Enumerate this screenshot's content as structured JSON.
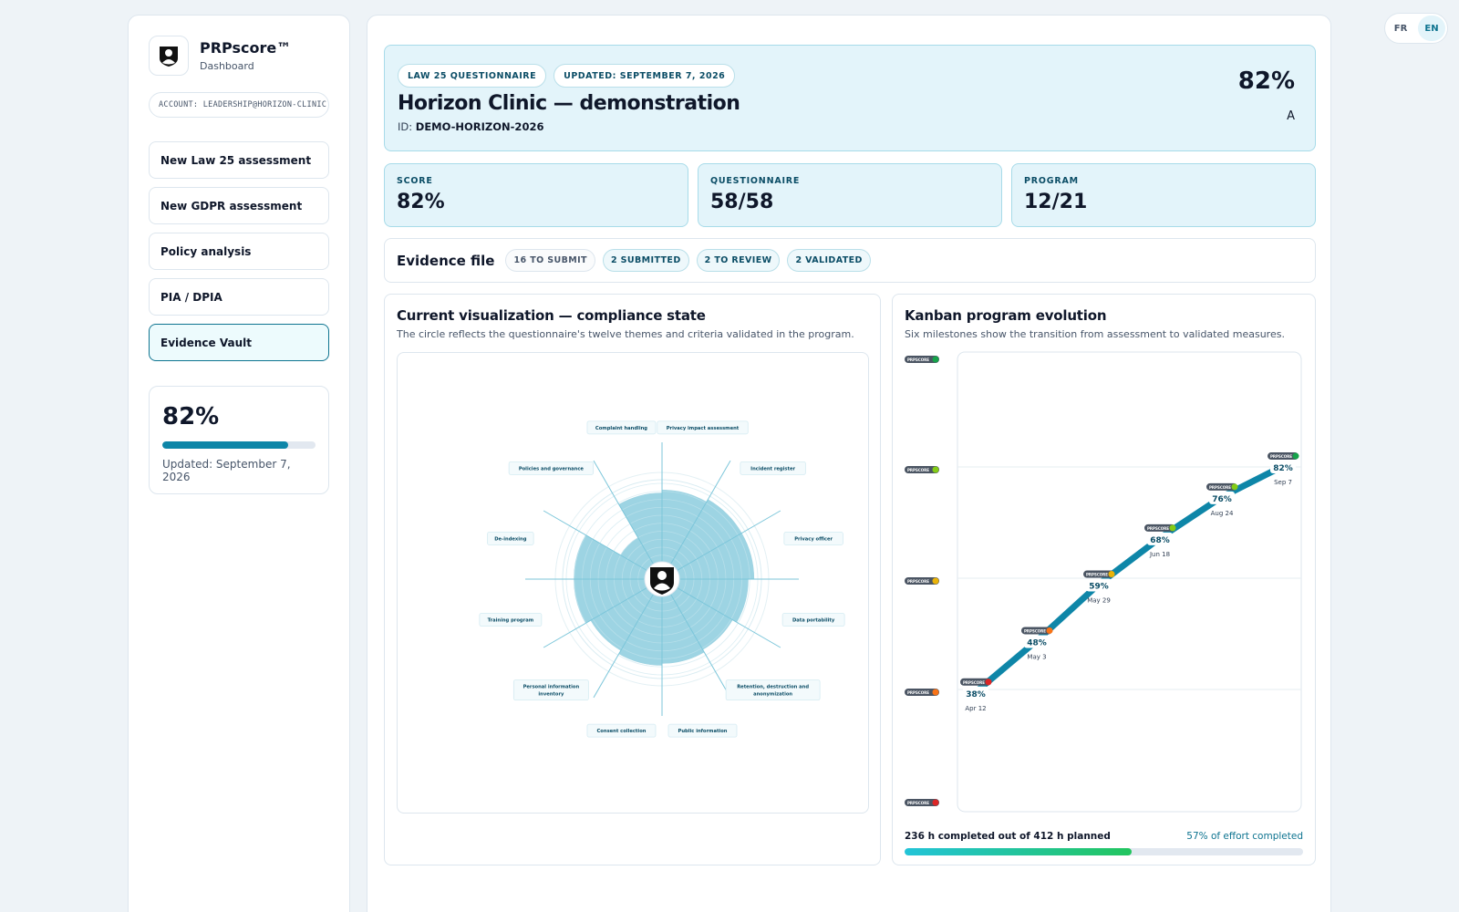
{
  "lang": {
    "fr": "FR",
    "en": "EN"
  },
  "brand": {
    "name": "PRPscore™",
    "subtitle": "Dashboard"
  },
  "account": "ACCOUNT: LEADERSHIP@HORIZON-CLINIC",
  "nav": [
    {
      "label": "New Law 25 assessment"
    },
    {
      "label": "New GDPR assessment"
    },
    {
      "label": "Policy analysis"
    },
    {
      "label": "PIA / DPIA"
    },
    {
      "label": "Evidence Vault"
    }
  ],
  "side_card": {
    "score": "82%",
    "progress": 0.82,
    "updated": "Updated: September 7, 2026"
  },
  "hero": {
    "pill_1": "LAW 25 QUESTIONNAIRE",
    "pill_2": "UPDATED: SEPTEMBER 7, 2026",
    "title": "Horizon Clinic — demonstration",
    "id_label": "ID:",
    "id_value": "DEMO-HORIZON-2026",
    "score": "82%",
    "grade": "A"
  },
  "stats": [
    {
      "label": "SCORE",
      "value": "82%"
    },
    {
      "label": "QUESTIONNAIRE",
      "value": "58/58"
    },
    {
      "label": "PROGRAM",
      "value": "12/21"
    }
  ],
  "evidence": {
    "title": "Evidence file",
    "tags": [
      "16 TO SUBMIT",
      "2 SUBMITTED",
      "2 TO REVIEW",
      "2 VALIDATED"
    ]
  },
  "radar": {
    "title": "Current visualization — compliance state",
    "subtitle": "The circle reflects the questionnaire's twelve themes and criteria validated in the program.",
    "themes": [
      {
        "label": "Privacy impact assessment",
        "value": 0.93
      },
      {
        "label": "Incident register",
        "value": 0.96
      },
      {
        "label": "Privacy officer",
        "value": 0.96
      },
      {
        "label": "Data portability",
        "value": 0.9
      },
      {
        "label": "Retention, destruction and anonymization",
        "value": 0.85
      },
      {
        "label": "Public information",
        "value": 0.88
      },
      {
        "label": "Consent collection",
        "value": 0.9
      },
      {
        "label": "Personal information inventory",
        "value": 0.86
      },
      {
        "label": "Training program",
        "value": 0.92
      },
      {
        "label": "De-indexing",
        "value": 0.92
      },
      {
        "label": "Policies and governance",
        "value": 0.5
      },
      {
        "label": "Complaint handling",
        "value": 0.9
      }
    ]
  },
  "kanban": {
    "title": "Kanban program evolution",
    "subtitle": "Six milestones show the transition from assessment to validated measures.",
    "badge_text": "PRPSCORE",
    "level_colors": [
      "#16a34a",
      "#84cc16",
      "#eab308",
      "#f97316",
      "#dc2626"
    ],
    "milestones": [
      {
        "date": "Apr 12",
        "score": 38,
        "label": "38%",
        "color": "#dc2626"
      },
      {
        "date": "May 3",
        "score": 48,
        "label": "48%",
        "color": "#f97316"
      },
      {
        "date": "May 29",
        "score": 59,
        "label": "59%",
        "color": "#eab308"
      },
      {
        "date": "Jun 18",
        "score": 68,
        "label": "68%",
        "color": "#84cc16"
      },
      {
        "date": "Aug 24",
        "score": 76,
        "label": "76%",
        "color": "#84cc16"
      },
      {
        "date": "Sep 7",
        "score": 82,
        "label": "82%",
        "color": "#16a34a"
      }
    ],
    "effort_left": "236 h completed out of 412 h planned",
    "effort_right": "57% of effort completed",
    "effort_progress": 0.57
  },
  "colors": {
    "accent": "#0e86a8",
    "hero_bg": "#e3f4fa",
    "radar_fill": "#7cc6da"
  }
}
